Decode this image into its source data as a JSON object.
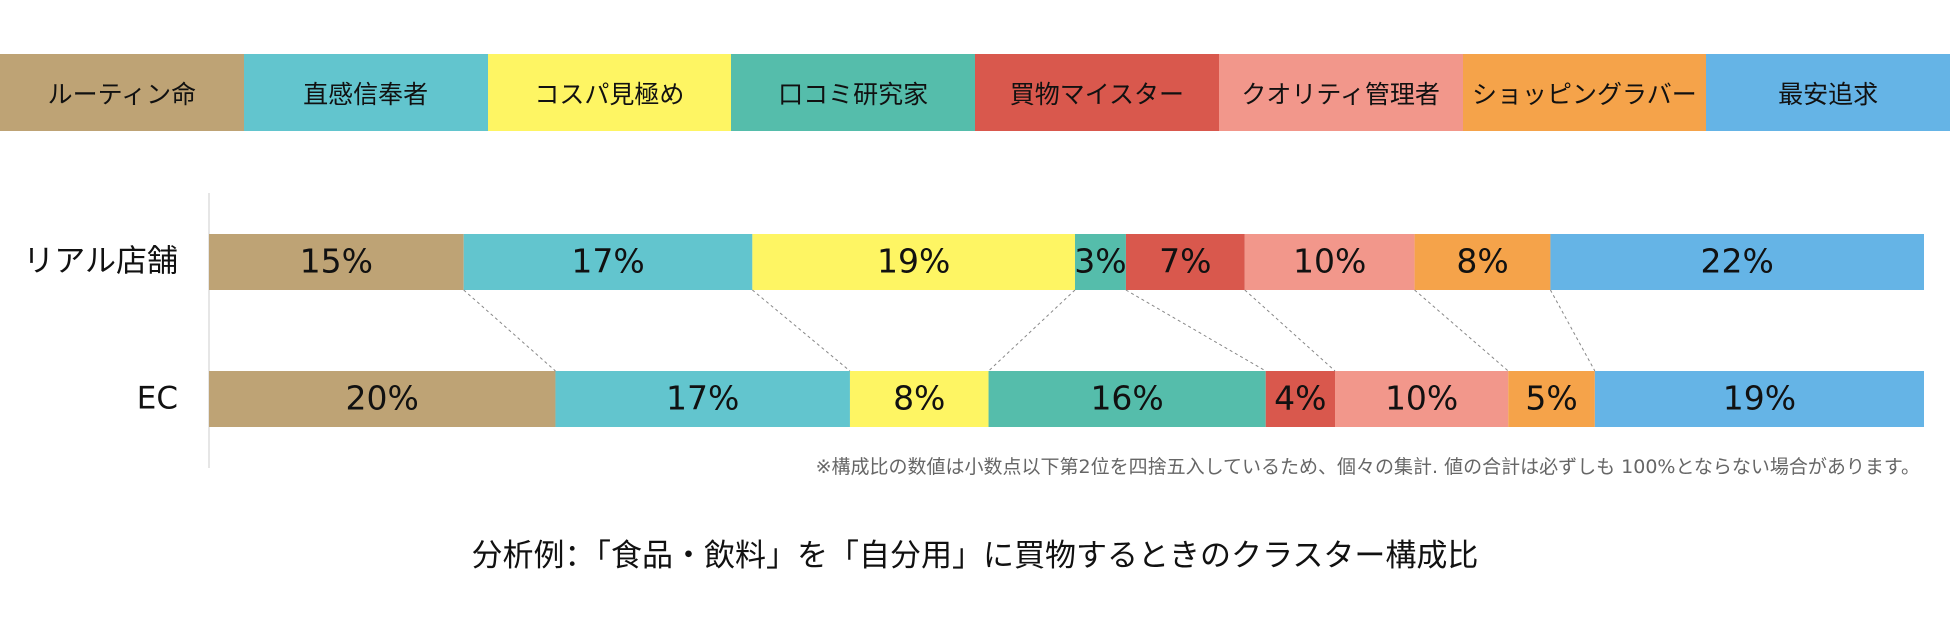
{
  "legend": {
    "items": [
      {
        "label": "ルーティン命",
        "color": "#BEA375"
      },
      {
        "label": "直感信奉者",
        "color": "#62C5CE"
      },
      {
        "label": "コスパ見極め",
        "color": "#FEF563"
      },
      {
        "label": "口コミ研究家",
        "color": "#55BDAB"
      },
      {
        "label": "買物マイスター",
        "color": "#D9584D"
      },
      {
        "label": "クオリティ管理者",
        "color": "#F2978B"
      },
      {
        "label": "ショッピングラバー",
        "color": "#F5A34A"
      },
      {
        "label": "最安追求",
        "color": "#65B4E6"
      }
    ]
  },
  "chart_data": {
    "type": "bar",
    "orientation": "horizontal",
    "stacked": true,
    "normalized": "percent",
    "categories": [
      "リアル店舗",
      "EC"
    ],
    "series": [
      {
        "name": "ルーティン命",
        "values": [
          15,
          20
        ]
      },
      {
        "name": "直感信奉者",
        "values": [
          17,
          17
        ]
      },
      {
        "name": "コスパ見極め",
        "values": [
          19,
          8
        ]
      },
      {
        "name": "口コミ研究家",
        "values": [
          3,
          16
        ]
      },
      {
        "name": "買物マイスター",
        "values": [
          7,
          4
        ]
      },
      {
        "name": "クオリティ管理者",
        "values": [
          10,
          10
        ]
      },
      {
        "name": "ショッピングラバー",
        "values": [
          8,
          5
        ]
      },
      {
        "name": "最安追求",
        "values": [
          22,
          19
        ]
      }
    ],
    "value_suffix": "%",
    "connector_lines": true,
    "legend_position": "top"
  },
  "note": "※構成比の数値は小数点以下第2位を四捨五入しているため、個々の集計. 値の合計は必ずしも 100%とならない場合があります。",
  "caption": "分析例：「食品・飲料」を「自分用」に買物するときのクラスター構成比"
}
